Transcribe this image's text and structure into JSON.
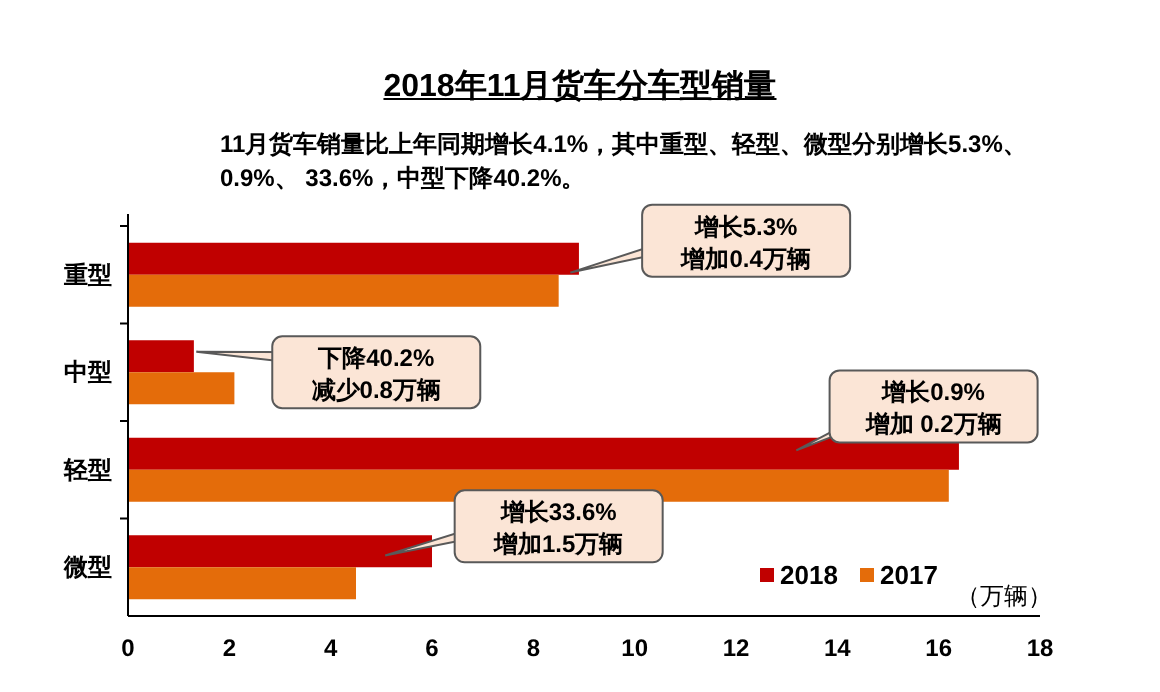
{
  "chart_data": {
    "type": "bar",
    "orientation": "horizontal",
    "title": "2018年11月货车分车型销量",
    "subtitle": "11月货车销量比上年同期增长4.1%，其中重型、轻型、微型分别增长5.3%、 0.9%、 33.6%，中型下降40.2%。",
    "xlabel": "（万辆）",
    "categories": [
      "重型",
      "中型",
      "轻型",
      "微型"
    ],
    "series": [
      {
        "name": "2018",
        "color": "#c00000",
        "values": [
          8.9,
          1.3,
          16.4,
          6.0
        ]
      },
      {
        "name": "2017",
        "color": "#e46c0a",
        "values": [
          8.5,
          2.1,
          16.2,
          4.5
        ]
      }
    ],
    "xlim": [
      0,
      18
    ],
    "xticks": [
      0,
      2,
      4,
      6,
      8,
      10,
      12,
      14,
      16,
      18
    ],
    "grid": false,
    "legend": "bottom right",
    "annotations": [
      "增长5.3%\n增加0.4万辆",
      "下降40.2%\n减少0.8万辆",
      "增长0.9%\n增加 0.2万辆",
      "增长33.6%\n增加1.5万辆"
    ]
  }
}
